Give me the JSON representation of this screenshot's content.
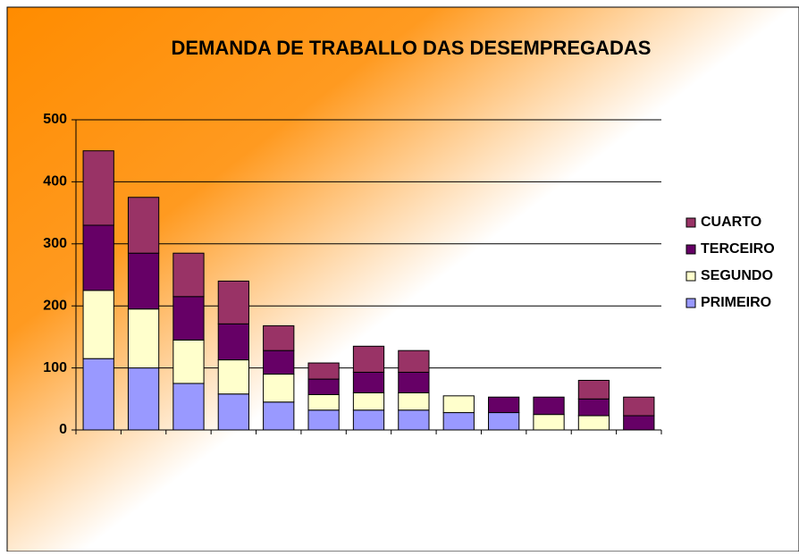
{
  "chart_data": {
    "type": "stacked-bar",
    "title": "DEMANDA DE TRABALLO DAS DESEMPREGADAS",
    "categories": [
      null,
      null,
      null,
      null,
      null,
      null,
      null,
      null,
      null,
      null,
      null,
      null,
      null
    ],
    "series": [
      {
        "name": "PRIMEIRO",
        "color": "#9999ff",
        "values": [
          115,
          100,
          75,
          58,
          45,
          32,
          32,
          32,
          28,
          28,
          0,
          0,
          0
        ]
      },
      {
        "name": "SEGUNDO",
        "color": "#ffffcc",
        "values": [
          110,
          95,
          70,
          55,
          45,
          25,
          28,
          28,
          27,
          0,
          25,
          23,
          0
        ]
      },
      {
        "name": "TERCEIRO",
        "color": "#660066",
        "values": [
          105,
          90,
          70,
          58,
          38,
          25,
          33,
          33,
          0,
          25,
          28,
          27,
          23
        ]
      },
      {
        "name": "CUARTO",
        "color": "#993366",
        "values": [
          120,
          90,
          70,
          69,
          40,
          26,
          42,
          35,
          0,
          0,
          0,
          30,
          30
        ]
      }
    ],
    "ylim": [
      0,
      500
    ],
    "yticks": [
      0,
      100,
      200,
      300,
      400,
      500
    ],
    "grid": true,
    "legend": "right"
  }
}
